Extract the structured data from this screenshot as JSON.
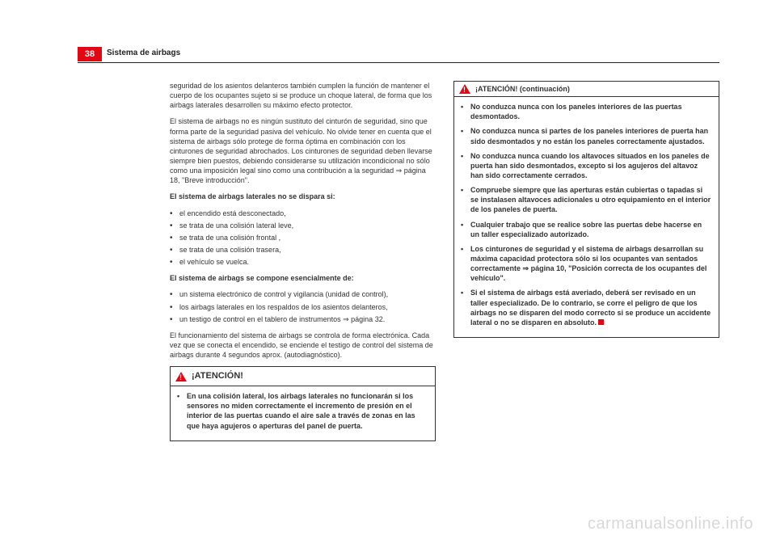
{
  "page": {
    "number": "38",
    "section": "Sistema de airbags"
  },
  "colors": {
    "accent": "#e30613",
    "text": "#333333",
    "rule": "#222222",
    "watermark": "#d9d9d9",
    "bg": "#ffffff"
  },
  "left_column": {
    "p1": "seguridad de los asientos delanteros también cumplen la función de mantener el cuerpo de los ocupantes sujeto si se produce un choque lateral, de forma que los airbags laterales desarrollen su máximo efecto protector.",
    "p2": "El sistema de airbags no es ningún sustituto del cinturón de seguridad, sino que forma parte de la seguridad pasiva del vehículo. No olvide tener en cuenta que el sistema de airbags sólo protege de forma óptima en combinación con los cinturones de seguridad abrochados. Los cinturones de seguridad deben llevarse siempre bien puestos, debiendo considerarse su utilización incondicional no sólo como una imposición legal sino como una contribución a la seguridad ⇒ página 18, \"Breve introducción\".",
    "h1": "El sistema de airbags laterales no se dispara si:",
    "list1": [
      "el encendido está desconectado,",
      "se trata de una colisión lateral leve,",
      "se trata de una colisión frontal ,",
      "se trata de una colisión trasera,",
      "el vehículo se vuelca."
    ],
    "h2": "El sistema de airbags se compone esencialmente de:",
    "list2": [
      "un sistema electrónico de control y vigilancia (unidad de control),",
      "los airbags laterales en los respaldos de los asientos delanteros,",
      "un testigo de control    en el tablero de instrumentos ⇒ página 32."
    ],
    "p3": "El funcionamiento del sistema de airbags se controla de forma electrónica. Cada vez que se conecta el encendido, se enciende el testigo de control del sistema de airbags durante 4 segundos aprox. (autodiagnóstico).",
    "warn_title": "¡ATENCIÓN!",
    "warn_items": [
      "En una colisión lateral, los airbags laterales no funcionarán si los sensores no miden correctamente el incremento de presión en el interior de las puertas cuando el aire sale a través de zonas en las que haya agujeros o aperturas del panel de puerta."
    ]
  },
  "right_column": {
    "warn_title": "¡ATENCIÓN! (continuación)",
    "warn_items": [
      "No conduzca nunca con los paneles interiores de las puertas desmontados.",
      "No conduzca nunca si partes de los paneles interiores de puerta han sido desmontados y no están los paneles correctamente ajustados.",
      "No conduzca nunca cuando los altavoces situados en los paneles de puerta han sido desmontados, excepto si los agujeros del altavoz han sido correctamente cerrados.",
      "Compruebe siempre que las aperturas están cubiertas o tapadas si se instalasen altavoces adicionales u otro equipamiento en el interior de los paneles de puerta.",
      "Cualquier trabajo que se realice sobre las puertas debe hacerse en un taller especializado autorizado.",
      "Los cinturones de seguridad y el sistema de airbags desarrollan su máxima capacidad protectora sólo si los ocupantes van sentados correctamente ⇒ página 10, \"Posición correcta de los ocupantes del vehículo\".",
      "Si el sistema de airbags está averiado, deberá ser revisado en un taller especializado. De lo contrario, se corre el peligro de que los airbags no se disparen del modo correcto si se produce un accidente lateral o no se disparen en absoluto."
    ]
  },
  "watermark": "carmanualsonline.info"
}
